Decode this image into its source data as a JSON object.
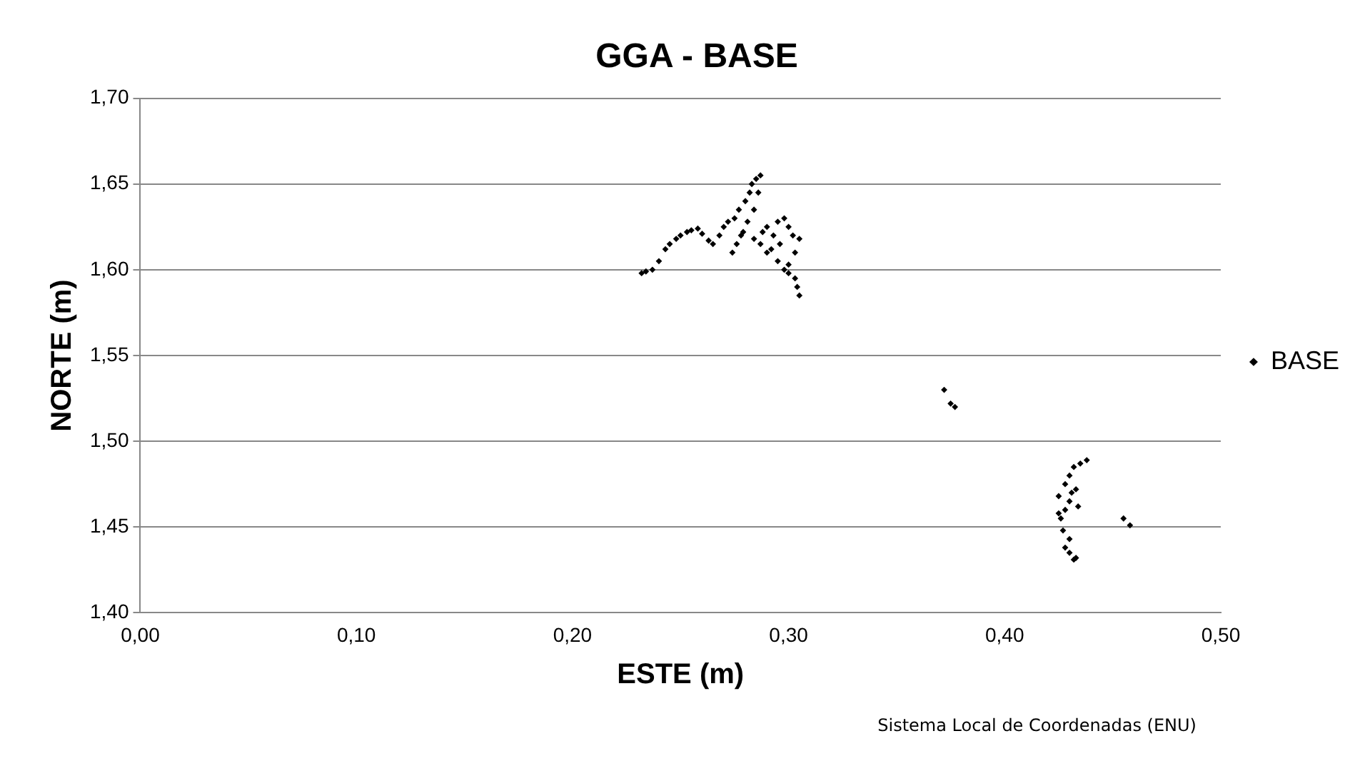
{
  "chart_data": {
    "type": "scatter",
    "title": "GGA - BASE",
    "xlabel": "ESTE (m)",
    "ylabel": "NORTE (m)",
    "series": [
      {
        "name": "BASE",
        "color": "#000000",
        "x": [
          0.232,
          0.234,
          0.237,
          0.24,
          0.243,
          0.245,
          0.248,
          0.25,
          0.253,
          0.255,
          0.258,
          0.26,
          0.263,
          0.265,
          0.268,
          0.27,
          0.272,
          0.275,
          0.277,
          0.28,
          0.282,
          0.283,
          0.285,
          0.287,
          0.286,
          0.284,
          0.281,
          0.279,
          0.276,
          0.274,
          0.278,
          0.284,
          0.288,
          0.29,
          0.293,
          0.295,
          0.298,
          0.3,
          0.302,
          0.305,
          0.303,
          0.3,
          0.295,
          0.3,
          0.304,
          0.305,
          0.303,
          0.298,
          0.29,
          0.287,
          0.292,
          0.296,
          0.372,
          0.375,
          0.377,
          0.425,
          0.428,
          0.43,
          0.432,
          0.435,
          0.438,
          0.433,
          0.43,
          0.428,
          0.426,
          0.425,
          0.427,
          0.43,
          0.428,
          0.43,
          0.433,
          0.432,
          0.434,
          0.431,
          0.455,
          0.458
        ],
        "values": [
          1.598,
          1.599,
          1.6,
          1.605,
          1.612,
          1.615,
          1.618,
          1.62,
          1.622,
          1.623,
          1.624,
          1.621,
          1.617,
          1.615,
          1.62,
          1.625,
          1.628,
          1.63,
          1.635,
          1.64,
          1.645,
          1.65,
          1.653,
          1.655,
          1.645,
          1.635,
          1.628,
          1.622,
          1.615,
          1.61,
          1.62,
          1.618,
          1.622,
          1.625,
          1.62,
          1.628,
          1.63,
          1.625,
          1.62,
          1.618,
          1.61,
          1.603,
          1.605,
          1.598,
          1.59,
          1.585,
          1.595,
          1.6,
          1.61,
          1.615,
          1.612,
          1.615,
          1.53,
          1.522,
          1.52,
          1.468,
          1.475,
          1.48,
          1.485,
          1.487,
          1.489,
          1.472,
          1.465,
          1.46,
          1.455,
          1.458,
          1.448,
          1.443,
          1.438,
          1.435,
          1.432,
          1.431,
          1.462,
          1.47,
          1.455,
          1.451
        ]
      }
    ],
    "xlim": [
      0,
      0.5
    ],
    "xticks": [
      {
        "value": 0,
        "label": "0,00"
      },
      {
        "value": 0.1,
        "label": "0,10"
      },
      {
        "value": 0.2,
        "label": "0,20"
      },
      {
        "value": 0.3,
        "label": "0,30"
      },
      {
        "value": 0.4,
        "label": "0,40"
      },
      {
        "value": 0.5,
        "label": "0,50"
      }
    ],
    "ylim": [
      1.4,
      1.7
    ],
    "yticks": [
      {
        "value": 1.4,
        "label": "1,40"
      },
      {
        "value": 1.45,
        "label": "1,45"
      },
      {
        "value": 1.5,
        "label": "1,50"
      },
      {
        "value": 1.55,
        "label": "1,55"
      },
      {
        "value": 1.6,
        "label": "1,60"
      },
      {
        "value": 1.65,
        "label": "1,65"
      },
      {
        "value": 1.7,
        "label": "1,70"
      }
    ],
    "grid": "y",
    "legend": "right",
    "marker": "diamond",
    "annotations": [
      "Sistema Local de Coordenadas (ENU)"
    ]
  }
}
